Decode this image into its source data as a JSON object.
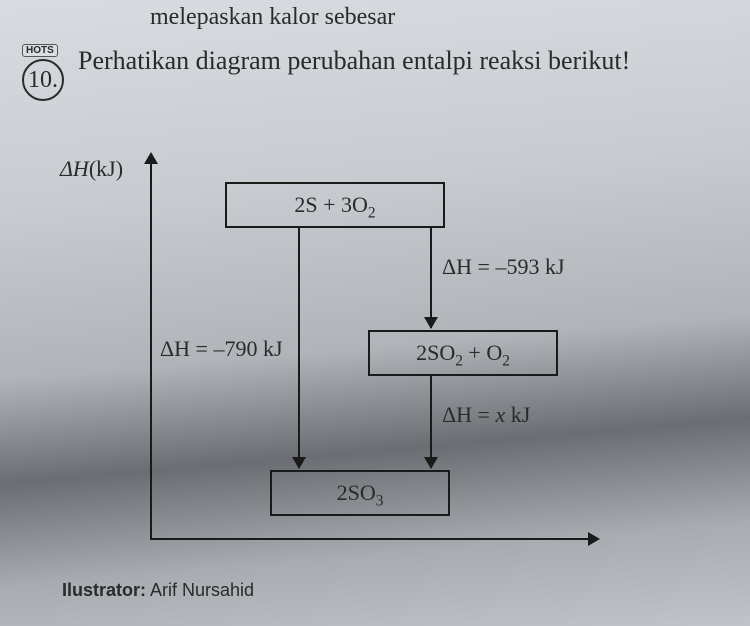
{
  "crop_line": "melepaskan kalor sebesar",
  "question": {
    "hots_badge": "HOTS",
    "number": "10.",
    "text": "Perhatikan diagram perubahan entalpi reaksi berikut!"
  },
  "diagram": {
    "y_axis_label_delta": "ΔH",
    "y_axis_label_unit": "(kJ)",
    "box_top": "2S + 3O₂",
    "box_mid": "2SO₂ + O₂",
    "box_bottom": "2SO₃",
    "dh_top_mid": "ΔH = –593 kJ",
    "dh_top_bot": "ΔH = –790 kJ",
    "dh_mid_bot_prefix": "ΔH = ",
    "dh_mid_bot_x": "x",
    "dh_mid_bot_suffix": " kJ"
  },
  "illustrator_label": "Ilustrator:",
  "illustrator_name": " Arif Nursahid"
}
